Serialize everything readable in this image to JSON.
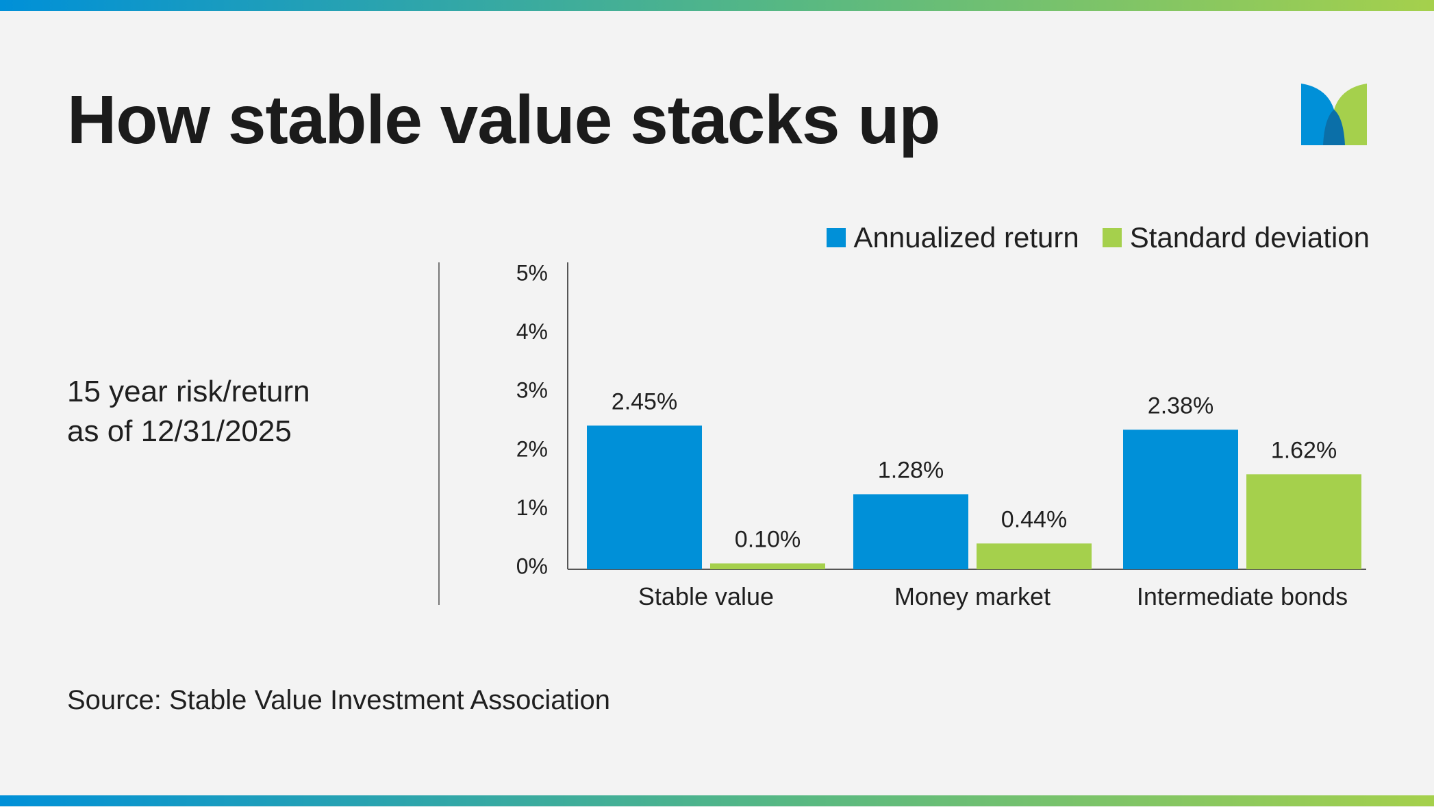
{
  "header": {
    "title": "How stable value stacks up"
  },
  "subtitle": {
    "line1": "15 year risk/return",
    "line2": "as of 12/31/2025"
  },
  "footer": {
    "source": "Source: Stable Value Investment Association"
  },
  "colors": {
    "annualized_return": "#0090d8",
    "standard_deviation": "#a5d04c"
  },
  "chart_data": {
    "type": "bar",
    "categories": [
      "Stable value",
      "Money market",
      "Intermediate bonds"
    ],
    "series": [
      {
        "name": "Annualized return",
        "values": [
          2.45,
          1.28,
          2.38
        ],
        "labels": [
          "2.45%",
          "1.28%",
          "2.38%"
        ],
        "color": "#0090d8"
      },
      {
        "name": "Standard deviation",
        "values": [
          0.1,
          0.44,
          1.62
        ],
        "labels": [
          "0.10%",
          "0.44%",
          "1.62%"
        ],
        "color": "#a5d04c"
      }
    ],
    "ylim": [
      0,
      5
    ],
    "yticks": [
      0,
      1,
      2,
      3,
      4,
      5
    ],
    "ytick_labels": [
      "0%",
      "1%",
      "2%",
      "3%",
      "4%",
      "5%"
    ],
    "legend": "top-right",
    "grid": false
  }
}
